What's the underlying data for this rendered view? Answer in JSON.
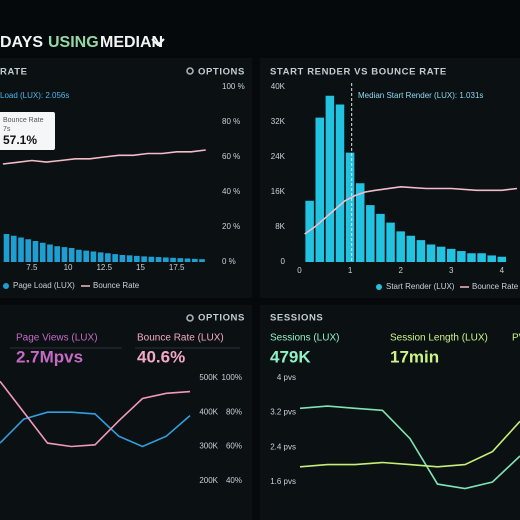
{
  "header": {
    "title_parts": [
      "DAYS",
      "USING",
      "MEDIAN"
    ]
  },
  "chart_data": [
    {
      "type": "histogram",
      "title": "RATE",
      "options": "OPTIONS",
      "annotation": "Load (LUX): 2.056s",
      "tooltip": {
        "title": "Bounce Rate",
        "subtitle": "7s",
        "value": "57.1%"
      },
      "bins": [
        5.5,
        6,
        6.5,
        7,
        7.5,
        8,
        8.5,
        9,
        9.5,
        10,
        10.5,
        11,
        11.5,
        12,
        12.5,
        13,
        13.5,
        14,
        14.5,
        15,
        15.5,
        16,
        16.5,
        17,
        17.5,
        18,
        18.5,
        19,
        19.5
      ],
      "series": [
        {
          "name": "Page Load (LUX)",
          "color": "#1e9fd2",
          "values": [
            16,
            15,
            14,
            13,
            12,
            11,
            10,
            9,
            8.5,
            8,
            7,
            6.5,
            6,
            5.5,
            5,
            4.5,
            4,
            3.8,
            3.5,
            3.2,
            3,
            2.8,
            2.6,
            2.4,
            2.2,
            2,
            1.8,
            1.6
          ]
        },
        {
          "name": "Bounce Rate",
          "color": "#f4bcc8",
          "axis": "y2",
          "x": [
            5.5,
            6.5,
            7.5,
            8.5,
            9.5,
            10.5,
            11.5,
            12.5,
            13.5,
            14.5,
            15.5,
            16.5,
            17.5,
            18.5,
            19.5
          ],
          "values": [
            56,
            57,
            58,
            57.1,
            58,
            59,
            59,
            60,
            61,
            61,
            62,
            62,
            63,
            63,
            64
          ]
        }
      ],
      "xlim": [
        5.3,
        19.8
      ],
      "xticks": [
        7.5,
        10,
        12.5,
        15,
        17.5
      ],
      "ylim": [
        0,
        100
      ],
      "y2lim": [
        0,
        100
      ],
      "y2ticks": [
        {
          "value": 100,
          "label": "100 %"
        },
        {
          "value": 80,
          "label": "80 %"
        },
        {
          "value": 60,
          "label": "60 %"
        },
        {
          "value": 40,
          "label": "40 %"
        },
        {
          "value": 20,
          "label": "20 %"
        },
        {
          "value": 0,
          "label": "0 %"
        }
      ]
    },
    {
      "type": "histogram",
      "title": "START RENDER VS BOUNCE RATE",
      "annotation": "Median Start Render (LUX): 1.031s",
      "median": 1.031,
      "bins": [
        0.1,
        0.3,
        0.5,
        0.7,
        0.9,
        1.1,
        1.3,
        1.5,
        1.7,
        1.9,
        2.1,
        2.3,
        2.5,
        2.7,
        2.9,
        3.1,
        3.3,
        3.5,
        3.7,
        3.9,
        4.1
      ],
      "series": [
        {
          "name": "Start Render (LUX)",
          "color": "#22c3e0",
          "values": [
            14000,
            33000,
            38000,
            36000,
            25000,
            18000,
            13000,
            11000,
            9000,
            7000,
            6000,
            5000,
            4000,
            3500,
            3000,
            2500,
            2000,
            2000,
            1500,
            1200
          ]
        },
        {
          "name": "Bounce Rate",
          "color": "#f4bcc8",
          "axis": "y2",
          "x": [
            0.1,
            0.3,
            0.5,
            0.7,
            0.9,
            1.1,
            1.3,
            1.5,
            2,
            2.5,
            3,
            3.5,
            4,
            4.3
          ],
          "values": [
            16,
            20,
            25,
            30,
            35,
            38,
            40,
            41,
            43,
            42,
            42,
            41,
            41,
            42
          ]
        }
      ],
      "xlim": [
        -0.05,
        4.3
      ],
      "xticks": [
        0,
        1,
        2,
        3,
        4
      ],
      "ylim": [
        0,
        40000
      ],
      "yticks": [
        0,
        {
          "value": 8000,
          "label": "8K"
        },
        {
          "value": 16000,
          "label": "16K"
        },
        {
          "value": 24000,
          "label": "24K"
        },
        {
          "value": 32000,
          "label": "32K"
        },
        {
          "value": 40000,
          "label": "40K"
        }
      ],
      "y2lim": [
        0,
        100
      ]
    },
    {
      "type": "line",
      "options": "OPTIONS",
      "series": [
        {
          "name": "Page Views (LUX)",
          "summary": "2.7Mpvs",
          "color": "#2f9fe0",
          "label_color": "#c46ac4",
          "values": [
            310000,
            380000,
            400000,
            400000,
            395000,
            330000,
            300000,
            330000,
            390000
          ]
        },
        {
          "name": "Bounce Rate (LUX)",
          "summary": "40.6%",
          "color": "#f09ab8",
          "label_color": "#f2a9c4",
          "axis": "y2",
          "values": [
            98,
            80,
            62,
            60,
            61,
            75,
            88,
            91,
            92
          ]
        }
      ],
      "ylim": [
        150000,
        520000
      ],
      "yticks": [
        {
          "value": 200000,
          "label": "200K"
        },
        {
          "value": 300000,
          "label": "300K"
        },
        {
          "value": 400000,
          "label": "400K"
        },
        {
          "value": 500000,
          "label": "500K"
        }
      ],
      "y2lim": [
        30,
        104
      ],
      "y2ticks": [
        {
          "value": 40,
          "label": "40%"
        },
        {
          "value": 60,
          "label": "60%"
        },
        {
          "value": 80,
          "label": "80%"
        },
        {
          "value": 100,
          "label": "100%"
        }
      ]
    },
    {
      "type": "line",
      "title": "SESSIONS",
      "clipped_label": "PV",
      "series": [
        {
          "name": "Sessions (LUX)",
          "summary": "479K",
          "color": "#7fe3b4",
          "label_color": "#8ff0c4",
          "values": [
            3.3,
            3.35,
            3.3,
            3.25,
            2.6,
            1.55,
            1.45,
            1.6,
            2.2
          ]
        },
        {
          "name": "Session Length (LUX)",
          "summary": "17min",
          "color": "#c6ee78",
          "label_color": "#cdf585",
          "values": [
            1.95,
            2.0,
            2.0,
            2.05,
            2.0,
            1.95,
            2.0,
            2.3,
            3.0
          ]
        }
      ],
      "ylim": [
        1.23,
        4.16
      ],
      "yticks": [
        {
          "value": 1.6,
          "label": "1.6 pvs"
        },
        {
          "value": 2.4,
          "label": "2.4 pvs"
        },
        {
          "value": 3.2,
          "label": "3.2 pvs"
        },
        {
          "value": 4,
          "label": "4 pvs"
        }
      ]
    }
  ]
}
